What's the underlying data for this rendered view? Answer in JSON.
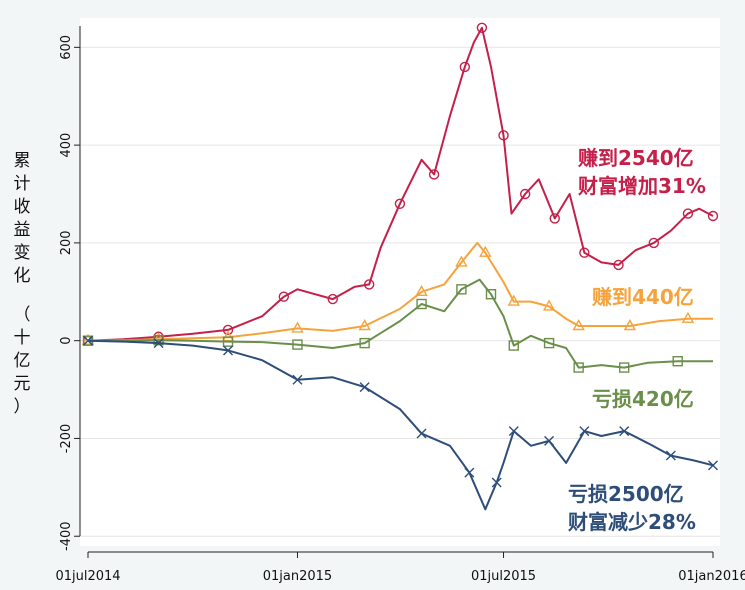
{
  "chart_data": {
    "type": "line",
    "ylabel": "累计收益变化",
    "ylabel_unit": [
      "（",
      "十",
      "亿",
      "元",
      "）"
    ],
    "ylim": [
      -420,
      660
    ],
    "yticks": [
      600,
      400,
      200,
      0,
      -200,
      -400
    ],
    "ytick_labels": [
      "600",
      "400",
      "200",
      "0",
      "-200",
      "-400"
    ],
    "xlim": [
      "2014-07-01",
      "2016-01-01"
    ],
    "xticks": [
      "2014-07-01",
      "2015-01-01",
      "2015-07-01",
      "2016-01-01"
    ],
    "xtick_labels": [
      "01jul2014",
      "01jan2015",
      "01jul2015",
      "01jan2016"
    ],
    "grid": "horizontal",
    "series": [
      {
        "marker": "circle",
        "color": "#c4204a",
        "points": [
          [
            "2014-07-01",
            0
          ],
          [
            "2014-08-01",
            3
          ],
          [
            "2014-09-01",
            8
          ],
          [
            "2014-10-01",
            14
          ],
          [
            "2014-11-01",
            22
          ],
          [
            "2014-12-01",
            50
          ],
          [
            "2014-12-20",
            90
          ],
          [
            "2015-01-01",
            105
          ],
          [
            "2015-02-01",
            85
          ],
          [
            "2015-02-20",
            110
          ],
          [
            "2015-03-05",
            115
          ],
          [
            "2015-03-15",
            190
          ],
          [
            "2015-04-01",
            280
          ],
          [
            "2015-04-20",
            370
          ],
          [
            "2015-05-01",
            340
          ],
          [
            "2015-05-15",
            460
          ],
          [
            "2015-05-28",
            560
          ],
          [
            "2015-06-05",
            610
          ],
          [
            "2015-06-12",
            640
          ],
          [
            "2015-06-20",
            560
          ],
          [
            "2015-07-01",
            420
          ],
          [
            "2015-07-08",
            260
          ],
          [
            "2015-07-20",
            300
          ],
          [
            "2015-08-01",
            330
          ],
          [
            "2015-08-15",
            250
          ],
          [
            "2015-08-28",
            300
          ],
          [
            "2015-09-10",
            180
          ],
          [
            "2015-09-25",
            160
          ],
          [
            "2015-10-10",
            155
          ],
          [
            "2015-10-25",
            185
          ],
          [
            "2015-11-10",
            200
          ],
          [
            "2015-11-25",
            225
          ],
          [
            "2015-12-10",
            260
          ],
          [
            "2015-12-20",
            270
          ],
          [
            "2016-01-01",
            255
          ]
        ]
      },
      {
        "marker": "triangle",
        "color": "#f5a33a",
        "points": [
          [
            "2014-07-01",
            0
          ],
          [
            "2014-08-01",
            1
          ],
          [
            "2014-09-01",
            3
          ],
          [
            "2014-10-01",
            5
          ],
          [
            "2014-11-01",
            7
          ],
          [
            "2014-12-01",
            15
          ],
          [
            "2015-01-01",
            25
          ],
          [
            "2015-02-01",
            20
          ],
          [
            "2015-03-01",
            30
          ],
          [
            "2015-04-01",
            65
          ],
          [
            "2015-04-20",
            100
          ],
          [
            "2015-05-10",
            115
          ],
          [
            "2015-05-25",
            160
          ],
          [
            "2015-06-08",
            200
          ],
          [
            "2015-06-15",
            180
          ],
          [
            "2015-07-01",
            120
          ],
          [
            "2015-07-10",
            80
          ],
          [
            "2015-07-25",
            80
          ],
          [
            "2015-08-10",
            70
          ],
          [
            "2015-08-25",
            45
          ],
          [
            "2015-09-05",
            30
          ],
          [
            "2015-09-25",
            30
          ],
          [
            "2015-10-20",
            30
          ],
          [
            "2015-11-15",
            40
          ],
          [
            "2015-12-10",
            45
          ],
          [
            "2016-01-01",
            45
          ]
        ]
      },
      {
        "marker": "square",
        "color": "#6a8f4a",
        "points": [
          [
            "2014-07-01",
            0
          ],
          [
            "2014-08-01",
            0
          ],
          [
            "2014-09-01",
            1
          ],
          [
            "2014-10-01",
            0
          ],
          [
            "2014-11-01",
            -2
          ],
          [
            "2014-12-01",
            -3
          ],
          [
            "2015-01-01",
            -8
          ],
          [
            "2015-02-01",
            -15
          ],
          [
            "2015-03-01",
            -5
          ],
          [
            "2015-04-01",
            40
          ],
          [
            "2015-04-20",
            75
          ],
          [
            "2015-05-10",
            60
          ],
          [
            "2015-05-25",
            105
          ],
          [
            "2015-06-10",
            125
          ],
          [
            "2015-06-20",
            95
          ],
          [
            "2015-07-01",
            50
          ],
          [
            "2015-07-10",
            -10
          ],
          [
            "2015-07-25",
            10
          ],
          [
            "2015-08-10",
            -5
          ],
          [
            "2015-08-25",
            -15
          ],
          [
            "2015-09-05",
            -55
          ],
          [
            "2015-09-25",
            -50
          ],
          [
            "2015-10-15",
            -55
          ],
          [
            "2015-11-05",
            -45
          ],
          [
            "2015-12-01",
            -42
          ],
          [
            "2016-01-01",
            -42
          ]
        ]
      },
      {
        "marker": "x",
        "color": "#2e4e79",
        "points": [
          [
            "2014-07-01",
            0
          ],
          [
            "2014-08-01",
            -2
          ],
          [
            "2014-09-01",
            -5
          ],
          [
            "2014-10-01",
            -10
          ],
          [
            "2014-11-01",
            -20
          ],
          [
            "2014-12-01",
            -40
          ],
          [
            "2015-01-01",
            -80
          ],
          [
            "2015-02-01",
            -75
          ],
          [
            "2015-03-01",
            -95
          ],
          [
            "2015-04-01",
            -140
          ],
          [
            "2015-04-20",
            -190
          ],
          [
            "2015-05-15",
            -215
          ],
          [
            "2015-06-01",
            -270
          ],
          [
            "2015-06-15",
            -345
          ],
          [
            "2015-06-25",
            -290
          ],
          [
            "2015-07-01",
            -250
          ],
          [
            "2015-07-10",
            -185
          ],
          [
            "2015-07-25",
            -215
          ],
          [
            "2015-08-10",
            -205
          ],
          [
            "2015-08-25",
            -250
          ],
          [
            "2015-09-10",
            -185
          ],
          [
            "2015-09-25",
            -195
          ],
          [
            "2015-10-15",
            -185
          ],
          [
            "2015-11-05",
            -210
          ],
          [
            "2015-11-25",
            -235
          ],
          [
            "2015-12-15",
            -245
          ],
          [
            "2016-01-01",
            -255
          ]
        ]
      }
    ]
  },
  "annotations": {
    "red": {
      "lines": [
        "赚到2540亿",
        "财富增加31%"
      ],
      "color": "#c4204a"
    },
    "orange": {
      "lines": [
        "赚到440亿"
      ],
      "color": "#f5a33a"
    },
    "green": {
      "lines": [
        "亏损420亿"
      ],
      "color": "#6a8f4a"
    },
    "blue": {
      "lines": [
        "亏损2500亿",
        "财富减少28%"
      ],
      "color": "#2e4e79"
    }
  }
}
